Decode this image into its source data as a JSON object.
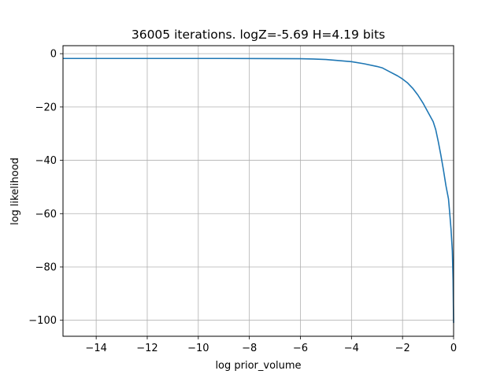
{
  "chart_data": {
    "type": "line",
    "title": "36005 iterations. logZ=-5.69 H=4.19 bits",
    "xlabel": "log prior_volume",
    "ylabel": "log likelihood",
    "xlim": [
      -15.3,
      0
    ],
    "ylim": [
      -106,
      3
    ],
    "x_ticks": [
      -14,
      -12,
      -10,
      -8,
      -6,
      -4,
      -2,
      0
    ],
    "x_tick_labels": [
      "−14",
      "−12",
      "−10",
      "−8",
      "−6",
      "−4",
      "−2",
      "0"
    ],
    "y_ticks": [
      0,
      -20,
      -40,
      -60,
      -80,
      -100
    ],
    "y_tick_labels": [
      "0",
      "−20",
      "−40",
      "−60",
      "−80",
      "−100"
    ],
    "grid": true,
    "series": [
      {
        "color": "#1f77b4",
        "x": [
          -15.3,
          -12,
          -9,
          -7,
          -6,
          -5.5,
          -5.0,
          -4.5,
          -4.0,
          -3.5,
          -3.0,
          -2.8,
          -2.5,
          -2.2,
          -2.0,
          -1.8,
          -1.6,
          -1.4,
          -1.2,
          -1.0,
          -0.8,
          -0.7,
          -0.6,
          -0.5,
          -0.4,
          -0.3,
          -0.2,
          -0.15,
          -0.1,
          -0.05,
          -0.02,
          0
        ],
        "y": [
          -1.8,
          -1.8,
          -1.8,
          -1.85,
          -1.9,
          -2.0,
          -2.2,
          -2.6,
          -3.0,
          -3.8,
          -4.8,
          -5.3,
          -6.8,
          -8.3,
          -9.5,
          -11.0,
          -13.0,
          -15.5,
          -18.5,
          -22.0,
          -25.5,
          -28.5,
          -33.0,
          -38.0,
          -43.5,
          -49.5,
          -54.5,
          -60.0,
          -66.0,
          -74.0,
          -85.0,
          -101.0
        ]
      }
    ]
  }
}
